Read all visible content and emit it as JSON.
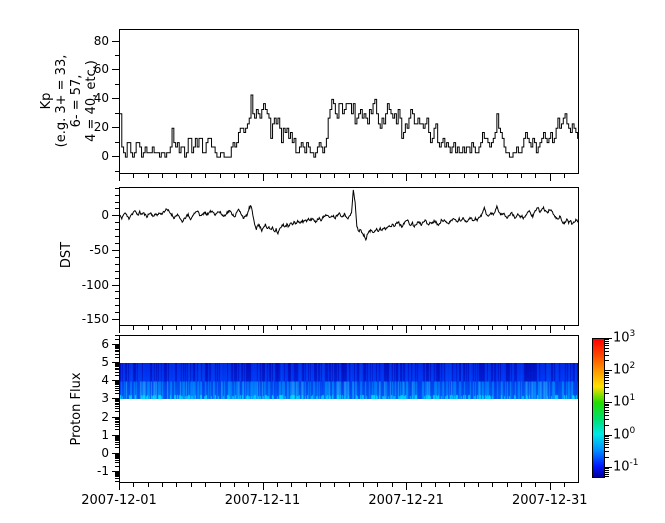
{
  "figure": {
    "background": "#ffffff",
    "foreground": "#000000",
    "line_color": "#000000"
  },
  "xaxis": {
    "tick_labels": [
      "2007-12-01",
      "2007-12-11",
      "2007-12-21",
      "2007-12-31"
    ],
    "tick_days": [
      0,
      10,
      20,
      30
    ],
    "days_span": 31.9
  },
  "chart_data": [
    {
      "type": "line",
      "line_style": "step",
      "name": "Kp index",
      "ylabel_lines": [
        "Kp",
        "(e.g. 3+ = 33,",
        "6- = 57,",
        "4 = 40, etc.)"
      ],
      "ytick_labels": [
        "0",
        "20",
        "40",
        "60",
        "80"
      ],
      "ytick_values": [
        0,
        20,
        40,
        60,
        80
      ],
      "ytick_minor_values": [
        -10,
        10,
        30,
        50,
        70
      ],
      "ylim": [
        -11,
        88
      ],
      "x_start": "2007-12-01",
      "points_per_day": 8,
      "values": [
        30,
        7,
        3,
        0,
        10,
        10,
        3,
        0,
        3,
        10,
        10,
        7,
        0,
        3,
        7,
        3,
        3,
        3,
        7,
        3,
        3,
        3,
        0,
        3,
        3,
        0,
        3,
        3,
        7,
        20,
        10,
        7,
        10,
        3,
        7,
        7,
        0,
        3,
        13,
        13,
        3,
        7,
        13,
        7,
        13,
        13,
        3,
        3,
        10,
        13,
        13,
        7,
        7,
        3,
        0,
        0,
        3,
        3,
        0,
        0,
        0,
        0,
        7,
        10,
        7,
        10,
        17,
        20,
        20,
        17,
        20,
        23,
        27,
        43,
        30,
        27,
        33,
        30,
        27,
        33,
        37,
        33,
        30,
        27,
        13,
        23,
        27,
        23,
        27,
        20,
        10,
        20,
        17,
        20,
        13,
        17,
        10,
        13,
        3,
        3,
        7,
        10,
        7,
        3,
        10,
        7,
        3,
        3,
        0,
        3,
        7,
        10,
        7,
        3,
        7,
        13,
        27,
        33,
        40,
        37,
        30,
        27,
        37,
        37,
        30,
        33,
        37,
        37,
        37,
        30,
        37,
        23,
        27,
        30,
        33,
        27,
        30,
        27,
        23,
        33,
        30,
        37,
        40,
        30,
        23,
        20,
        27,
        23,
        30,
        37,
        33,
        30,
        27,
        30,
        23,
        33,
        27,
        13,
        17,
        23,
        20,
        27,
        33,
        30,
        23,
        23,
        27,
        23,
        23,
        20,
        23,
        27,
        17,
        10,
        13,
        20,
        23,
        10,
        7,
        10,
        13,
        7,
        10,
        7,
        3,
        7,
        10,
        3,
        7,
        3,
        3,
        7,
        3,
        7,
        7,
        3,
        10,
        7,
        3,
        3,
        7,
        10,
        17,
        13,
        13,
        10,
        7,
        10,
        13,
        17,
        30,
        20,
        17,
        13,
        7,
        3,
        3,
        0,
        0,
        3,
        3,
        7,
        3,
        3,
        7,
        13,
        17,
        13,
        10,
        7,
        13,
        10,
        3,
        7,
        10,
        13,
        17,
        13,
        10,
        13,
        17,
        10,
        13,
        20,
        27,
        20,
        23,
        27,
        30,
        23,
        20,
        17,
        23,
        20,
        17,
        13
      ]
    },
    {
      "type": "line",
      "name": "DST",
      "ylabel": "DST",
      "ytick_labels": [
        "0",
        "-50",
        "-100",
        "-150"
      ],
      "ytick_values": [
        0,
        -50,
        -100,
        -150
      ],
      "ylim": [
        -157,
        41
      ],
      "x_start": "2007-12-01",
      "points_per_day": 8,
      "noise_amp": 3.5,
      "noise_seed": 11,
      "values": [
        2,
        -4,
        3,
        5,
        0,
        -3,
        2,
        4,
        8,
        5,
        2,
        6,
        3,
        5,
        2,
        0,
        3,
        5,
        2,
        0,
        4,
        2,
        5,
        3,
        6,
        8,
        10,
        8,
        5,
        2,
        -2,
        0,
        3,
        -2,
        -5,
        -8,
        -3,
        0,
        2,
        -4,
        -2,
        3,
        6,
        8,
        4,
        0,
        3,
        6,
        4,
        2,
        6,
        8,
        6,
        3,
        5,
        7,
        5,
        2,
        0,
        4,
        6,
        8,
        5,
        2,
        0,
        5,
        10,
        6,
        2,
        -3,
        0,
        3,
        12,
        15,
        2,
        -10,
        -18,
        -12,
        -15,
        -20,
        -15,
        -12,
        -18,
        -15,
        -20,
        -15,
        -22,
        -18,
        -25,
        -18,
        -15,
        -12,
        -15,
        -12,
        -15,
        -10,
        -12,
        -8,
        -10,
        -7,
        -10,
        -6,
        -8,
        -5,
        -8,
        -4,
        -6,
        -3,
        -5,
        -8,
        -5,
        -2,
        -5,
        -2,
        0,
        3,
        0,
        -3,
        2,
        0,
        -2,
        2,
        5,
        2,
        0,
        3,
        0,
        -2,
        0,
        5,
        38,
        20,
        -15,
        -22,
        -18,
        -25,
        -28,
        -33,
        -25,
        -22,
        -20,
        -23,
        -20,
        -18,
        -22,
        -18,
        -20,
        -16,
        -18,
        -15,
        -12,
        -15,
        -12,
        -15,
        -10,
        -8,
        -12,
        -15,
        -10,
        -8,
        -5,
        -10,
        -13,
        -10,
        -15,
        -12,
        -8,
        -10,
        -12,
        -8,
        -5,
        -10,
        -12,
        -8,
        -10,
        -6,
        -8,
        -12,
        -10,
        -6,
        -8,
        -5,
        -8,
        -10,
        -8,
        -5,
        -3,
        -6,
        -8,
        -4,
        -6,
        -3,
        -5,
        -8,
        -5,
        -2,
        -4,
        -6,
        -3,
        -5,
        -2,
        0,
        5,
        12,
        5,
        0,
        2,
        5,
        2,
        8,
        15,
        8,
        2,
        5,
        3,
        0,
        -2,
        2,
        5,
        2,
        -2,
        0,
        3,
        -2,
        0,
        -3,
        2,
        5,
        8,
        3,
        0,
        5,
        10,
        12,
        6,
        10,
        12,
        8,
        5,
        8,
        10,
        5,
        2,
        -2,
        -5,
        0,
        -5,
        -10,
        -8,
        -5,
        -10,
        -6,
        -12,
        -8,
        -5,
        -8
      ]
    },
    {
      "type": "heatmap",
      "name": "Proton Flux spectrogram",
      "ylabel": "Proton Flux",
      "ytick_labels": [
        "-1",
        "0",
        "1",
        "2",
        "3",
        "4",
        "5",
        "6"
      ],
      "ytick_values": [
        -1,
        0,
        1,
        2,
        3,
        4,
        5,
        6
      ],
      "ylim": [
        -1.55,
        6.5
      ],
      "yscale_minor": "log-decade",
      "band": {
        "y_from": 3,
        "y_to": 5,
        "seed": 7,
        "top_color_range": "dark blue",
        "bottom_color_range": "bright blue with cyan flecks"
      },
      "colorbar": {
        "scale": "log",
        "tick_labels": [
          {
            "mantissa": "10",
            "exponent": "3"
          },
          {
            "mantissa": "10",
            "exponent": "2"
          },
          {
            "mantissa": "10",
            "exponent": "1"
          },
          {
            "mantissa": "10",
            "exponent": "0"
          },
          {
            "mantissa": "10",
            "exponent": "-1"
          }
        ],
        "tick_exponents": [
          3,
          2,
          1,
          0,
          -1
        ],
        "range_exponents": [
          -1.35,
          3
        ],
        "colormap": "jet"
      }
    }
  ]
}
